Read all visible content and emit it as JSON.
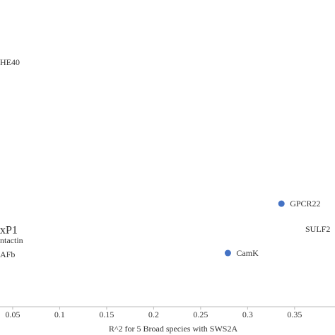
{
  "chart_data": {
    "type": "scatter",
    "x_label": "R^2 for 5 Broad species with SWS2A",
    "points": [
      {
        "label": "GPCR22",
        "x": 0.336,
        "y": 0.336
      },
      {
        "label": "CamK",
        "x": 0.279,
        "y": 0.175
      }
    ],
    "color": "#4472c4",
    "annotations": [
      "HE40",
      "xP1",
      "ntactin",
      "AFb",
      "SULF2"
    ],
    "xlim": [
      0.0365,
      0.393
    ],
    "ylim": [
      0,
      1
    ],
    "xticks": [
      0.05,
      0.1,
      0.15,
      0.2,
      0.25,
      0.3,
      0.35
    ]
  }
}
